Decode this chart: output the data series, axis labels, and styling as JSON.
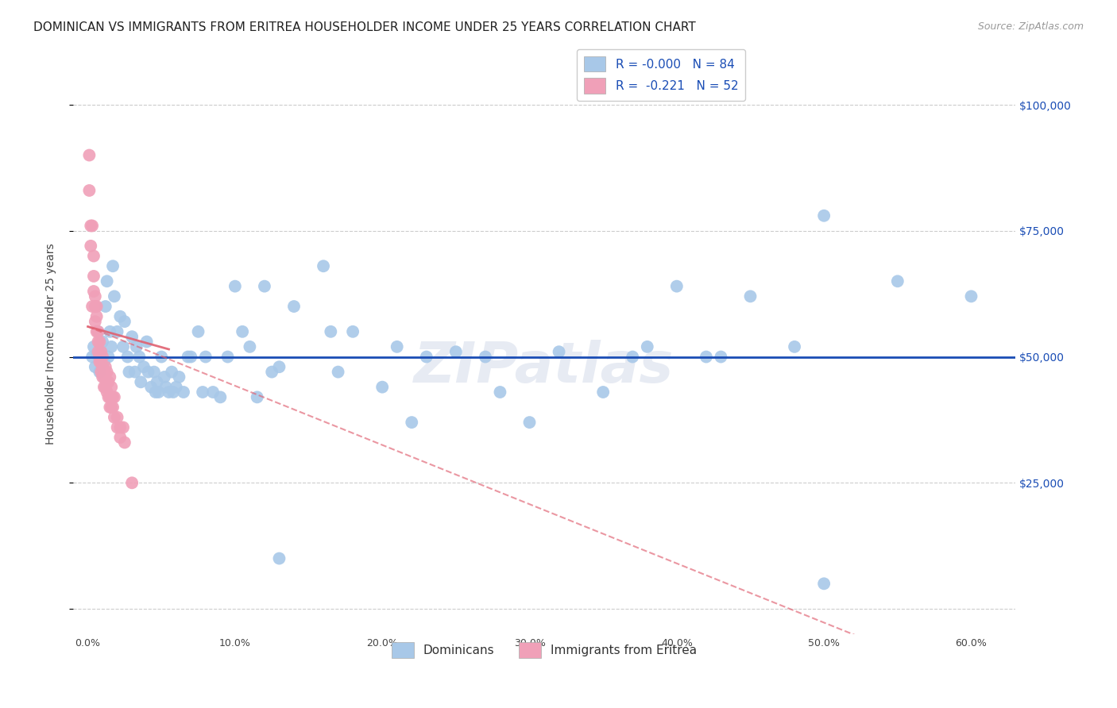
{
  "title": "DOMINICAN VS IMMIGRANTS FROM ERITREA HOUSEHOLDER INCOME UNDER 25 YEARS CORRELATION CHART",
  "source": "Source: ZipAtlas.com",
  "xlabel_ticks": [
    "0.0%",
    "10.0%",
    "20.0%",
    "30.0%",
    "40.0%",
    "50.0%",
    "60.0%"
  ],
  "xlabel_vals": [
    0.0,
    0.1,
    0.2,
    0.3,
    0.4,
    0.5,
    0.6
  ],
  "ylabel_right": [
    "$25,000",
    "$50,000",
    "$75,000",
    "$100,000"
  ],
  "ylabel_right_vals": [
    25000,
    50000,
    75000,
    100000
  ],
  "xlim": [
    -0.01,
    0.63
  ],
  "ylim": [
    -5000,
    110000
  ],
  "blue_color": "#a8c8e8",
  "pink_color": "#f0a0b8",
  "regression_blue_color": "#1a4db5",
  "regression_pink_color": "#e06070",
  "watermark": "ZIPatlas",
  "blue_regression_y": 50000,
  "blue_scatter": [
    [
      0.003,
      50000
    ],
    [
      0.004,
      52000
    ],
    [
      0.005,
      48000
    ],
    [
      0.006,
      50500
    ],
    [
      0.007,
      55000
    ],
    [
      0.008,
      47000
    ],
    [
      0.009,
      51000
    ],
    [
      0.01,
      53000
    ],
    [
      0.011,
      49000
    ],
    [
      0.012,
      60000
    ],
    [
      0.013,
      65000
    ],
    [
      0.014,
      50000
    ],
    [
      0.015,
      55000
    ],
    [
      0.016,
      52000
    ],
    [
      0.017,
      68000
    ],
    [
      0.018,
      62000
    ],
    [
      0.02,
      55000
    ],
    [
      0.022,
      58000
    ],
    [
      0.024,
      52000
    ],
    [
      0.025,
      57000
    ],
    [
      0.027,
      50000
    ],
    [
      0.028,
      47000
    ],
    [
      0.03,
      54000
    ],
    [
      0.032,
      47000
    ],
    [
      0.033,
      52000
    ],
    [
      0.035,
      50000
    ],
    [
      0.036,
      45000
    ],
    [
      0.038,
      48000
    ],
    [
      0.04,
      53000
    ],
    [
      0.041,
      47000
    ],
    [
      0.043,
      44000
    ],
    [
      0.045,
      47000
    ],
    [
      0.046,
      43000
    ],
    [
      0.047,
      45000
    ],
    [
      0.048,
      43000
    ],
    [
      0.05,
      50000
    ],
    [
      0.052,
      46000
    ],
    [
      0.053,
      44000
    ],
    [
      0.055,
      43000
    ],
    [
      0.057,
      47000
    ],
    [
      0.058,
      43000
    ],
    [
      0.06,
      44000
    ],
    [
      0.062,
      46000
    ],
    [
      0.065,
      43000
    ],
    [
      0.068,
      50000
    ],
    [
      0.07,
      50000
    ],
    [
      0.075,
      55000
    ],
    [
      0.078,
      43000
    ],
    [
      0.08,
      50000
    ],
    [
      0.085,
      43000
    ],
    [
      0.09,
      42000
    ],
    [
      0.095,
      50000
    ],
    [
      0.1,
      64000
    ],
    [
      0.105,
      55000
    ],
    [
      0.11,
      52000
    ],
    [
      0.115,
      42000
    ],
    [
      0.12,
      64000
    ],
    [
      0.125,
      47000
    ],
    [
      0.13,
      48000
    ],
    [
      0.14,
      60000
    ],
    [
      0.16,
      68000
    ],
    [
      0.165,
      55000
    ],
    [
      0.17,
      47000
    ],
    [
      0.18,
      55000
    ],
    [
      0.2,
      44000
    ],
    [
      0.21,
      52000
    ],
    [
      0.22,
      37000
    ],
    [
      0.23,
      50000
    ],
    [
      0.25,
      51000
    ],
    [
      0.27,
      50000
    ],
    [
      0.28,
      43000
    ],
    [
      0.3,
      37000
    ],
    [
      0.32,
      51000
    ],
    [
      0.35,
      43000
    ],
    [
      0.37,
      50000
    ],
    [
      0.38,
      52000
    ],
    [
      0.4,
      64000
    ],
    [
      0.42,
      50000
    ],
    [
      0.43,
      50000
    ],
    [
      0.45,
      62000
    ],
    [
      0.48,
      52000
    ],
    [
      0.5,
      78000
    ],
    [
      0.55,
      65000
    ],
    [
      0.6,
      62000
    ],
    [
      0.13,
      10000
    ],
    [
      0.5,
      5000
    ]
  ],
  "pink_scatter": [
    [
      0.001,
      90000
    ],
    [
      0.001,
      83000
    ],
    [
      0.002,
      76000
    ],
    [
      0.002,
      72000
    ],
    [
      0.003,
      76000
    ],
    [
      0.003,
      60000
    ],
    [
      0.004,
      70000
    ],
    [
      0.004,
      66000
    ],
    [
      0.004,
      63000
    ],
    [
      0.005,
      62000
    ],
    [
      0.005,
      60000
    ],
    [
      0.005,
      57000
    ],
    [
      0.006,
      60000
    ],
    [
      0.006,
      58000
    ],
    [
      0.006,
      55000
    ],
    [
      0.007,
      55000
    ],
    [
      0.007,
      53000
    ],
    [
      0.007,
      51000
    ],
    [
      0.008,
      53000
    ],
    [
      0.008,
      50000
    ],
    [
      0.008,
      49000
    ],
    [
      0.009,
      51000
    ],
    [
      0.009,
      49000
    ],
    [
      0.009,
      47000
    ],
    [
      0.01,
      50000
    ],
    [
      0.01,
      48000
    ],
    [
      0.01,
      46000
    ],
    [
      0.011,
      46000
    ],
    [
      0.011,
      44000
    ],
    [
      0.012,
      48000
    ],
    [
      0.012,
      44000
    ],
    [
      0.013,
      47000
    ],
    [
      0.013,
      43000
    ],
    [
      0.014,
      45000
    ],
    [
      0.014,
      42000
    ],
    [
      0.015,
      46000
    ],
    [
      0.015,
      42000
    ],
    [
      0.015,
      40000
    ],
    [
      0.016,
      44000
    ],
    [
      0.016,
      40000
    ],
    [
      0.017,
      42000
    ],
    [
      0.017,
      40000
    ],
    [
      0.018,
      42000
    ],
    [
      0.018,
      38000
    ],
    [
      0.02,
      38000
    ],
    [
      0.02,
      36000
    ],
    [
      0.022,
      36000
    ],
    [
      0.022,
      34000
    ],
    [
      0.024,
      36000
    ],
    [
      0.025,
      33000
    ],
    [
      0.03,
      25000
    ]
  ],
  "title_fontsize": 11,
  "source_fontsize": 9,
  "axis_label_fontsize": 10,
  "tick_fontsize": 9,
  "legend_fontsize": 11
}
